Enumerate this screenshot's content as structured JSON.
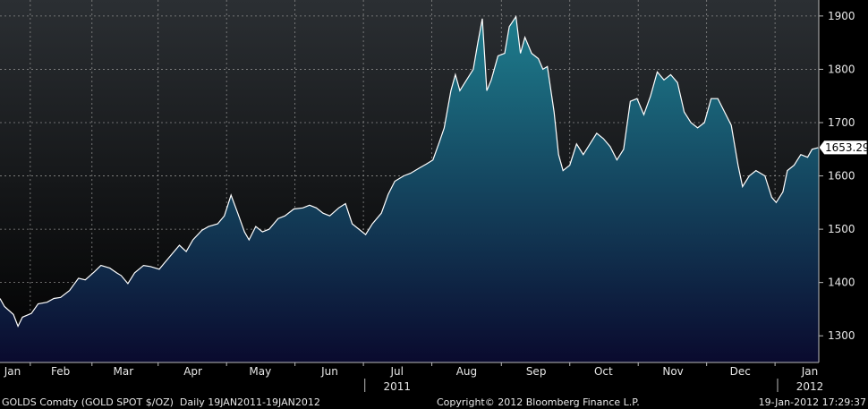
{
  "chart_data": {
    "type": "area",
    "title": "",
    "xlabel": "",
    "ylabel": "",
    "ylim": [
      1250,
      1930
    ],
    "x_range": [
      "2011-01-19",
      "2012-01-19"
    ],
    "y_ticks": [
      1300,
      1400,
      1500,
      1600,
      1700,
      1800,
      1900
    ],
    "x_ticks": [
      {
        "label": "Jan",
        "date": "2011-01-19"
      },
      {
        "label": "Feb",
        "date": "2011-02-15"
      },
      {
        "label": "Mar",
        "date": "2011-03-15"
      },
      {
        "label": "Apr",
        "date": "2011-04-15"
      },
      {
        "label": "May",
        "date": "2011-05-15"
      },
      {
        "label": "Jun",
        "date": "2011-06-15"
      },
      {
        "label": "Jul",
        "date": "2011-07-15"
      },
      {
        "label": "Aug",
        "date": "2011-08-15"
      },
      {
        "label": "Sep",
        "date": "2011-09-15"
      },
      {
        "label": "Oct",
        "date": "2011-10-15"
      },
      {
        "label": "Nov",
        "date": "2011-11-15"
      },
      {
        "label": "Dec",
        "date": "2011-12-15"
      },
      {
        "label": "Jan",
        "date": "2012-01-15"
      }
    ],
    "year_labels": [
      {
        "label": "2011",
        "date": "2011-07-15"
      },
      {
        "label": "2012",
        "date": "2012-01-15"
      }
    ],
    "last_price_label": "1653.29",
    "grid": true,
    "series": [
      {
        "points": [
          [
            "2011-01-19",
            1370
          ],
          [
            "2011-01-21",
            1355
          ],
          [
            "2011-01-25",
            1340
          ],
          [
            "2011-01-27",
            1318
          ],
          [
            "2011-01-29",
            1335
          ],
          [
            "2011-02-02",
            1342
          ],
          [
            "2011-02-05",
            1360
          ],
          [
            "2011-02-09",
            1363
          ],
          [
            "2011-02-12",
            1370
          ],
          [
            "2011-02-15",
            1372
          ],
          [
            "2011-02-19",
            1385
          ],
          [
            "2011-02-23",
            1408
          ],
          [
            "2011-02-26",
            1405
          ],
          [
            "2011-03-02",
            1420
          ],
          [
            "2011-03-05",
            1432
          ],
          [
            "2011-03-09",
            1427
          ],
          [
            "2011-03-12",
            1418
          ],
          [
            "2011-03-14",
            1413
          ],
          [
            "2011-03-17",
            1398
          ],
          [
            "2011-03-20",
            1418
          ],
          [
            "2011-03-24",
            1432
          ],
          [
            "2011-03-27",
            1430
          ],
          [
            "2011-03-31",
            1425
          ],
          [
            "2011-04-02",
            1435
          ],
          [
            "2011-04-06",
            1455
          ],
          [
            "2011-04-09",
            1470
          ],
          [
            "2011-04-12",
            1458
          ],
          [
            "2011-04-15",
            1480
          ],
          [
            "2011-04-19",
            1498
          ],
          [
            "2011-04-22",
            1505
          ],
          [
            "2011-04-26",
            1510
          ],
          [
            "2011-04-29",
            1525
          ],
          [
            "2011-05-02",
            1564
          ],
          [
            "2011-05-05",
            1530
          ],
          [
            "2011-05-08",
            1495
          ],
          [
            "2011-05-10",
            1480
          ],
          [
            "2011-05-13",
            1505
          ],
          [
            "2011-05-16",
            1495
          ],
          [
            "2011-05-19",
            1500
          ],
          [
            "2011-05-23",
            1520
          ],
          [
            "2011-05-26",
            1525
          ],
          [
            "2011-05-30",
            1538
          ],
          [
            "2011-06-03",
            1540
          ],
          [
            "2011-06-06",
            1545
          ],
          [
            "2011-06-09",
            1540
          ],
          [
            "2011-06-12",
            1530
          ],
          [
            "2011-06-15",
            1525
          ],
          [
            "2011-06-19",
            1540
          ],
          [
            "2011-06-22",
            1548
          ],
          [
            "2011-06-25",
            1510
          ],
          [
            "2011-06-28",
            1500
          ],
          [
            "2011-07-01",
            1490
          ],
          [
            "2011-07-04",
            1510
          ],
          [
            "2011-07-08",
            1530
          ],
          [
            "2011-07-11",
            1565
          ],
          [
            "2011-07-14",
            1590
          ],
          [
            "2011-07-18",
            1600
          ],
          [
            "2011-07-21",
            1605
          ],
          [
            "2011-07-25",
            1615
          ],
          [
            "2011-07-28",
            1622
          ],
          [
            "2011-07-31",
            1630
          ],
          [
            "2011-08-03",
            1665
          ],
          [
            "2011-08-05",
            1690
          ],
          [
            "2011-08-08",
            1760
          ],
          [
            "2011-08-10",
            1790
          ],
          [
            "2011-08-12",
            1760
          ],
          [
            "2011-08-15",
            1780
          ],
          [
            "2011-08-18",
            1800
          ],
          [
            "2011-08-20",
            1850
          ],
          [
            "2011-08-22",
            1895
          ],
          [
            "2011-08-24",
            1760
          ],
          [
            "2011-08-26",
            1780
          ],
          [
            "2011-08-29",
            1825
          ],
          [
            "2011-09-01",
            1830
          ],
          [
            "2011-09-03",
            1880
          ],
          [
            "2011-09-06",
            1899
          ],
          [
            "2011-09-08",
            1830
          ],
          [
            "2011-09-10",
            1860
          ],
          [
            "2011-09-13",
            1830
          ],
          [
            "2011-09-16",
            1820
          ],
          [
            "2011-09-18",
            1800
          ],
          [
            "2011-09-20",
            1805
          ],
          [
            "2011-09-23",
            1720
          ],
          [
            "2011-09-25",
            1640
          ],
          [
            "2011-09-27",
            1610
          ],
          [
            "2011-09-30",
            1620
          ],
          [
            "2011-10-03",
            1660
          ],
          [
            "2011-10-06",
            1640
          ],
          [
            "2011-10-09",
            1660
          ],
          [
            "2011-10-12",
            1680
          ],
          [
            "2011-10-15",
            1670
          ],
          [
            "2011-10-18",
            1655
          ],
          [
            "2011-10-21",
            1630
          ],
          [
            "2011-10-24",
            1650
          ],
          [
            "2011-10-27",
            1740
          ],
          [
            "2011-10-30",
            1745
          ],
          [
            "2011-11-02",
            1715
          ],
          [
            "2011-11-05",
            1750
          ],
          [
            "2011-11-08",
            1795
          ],
          [
            "2011-11-11",
            1780
          ],
          [
            "2011-11-14",
            1790
          ],
          [
            "2011-11-17",
            1775
          ],
          [
            "2011-11-20",
            1720
          ],
          [
            "2011-11-23",
            1700
          ],
          [
            "2011-11-26",
            1690
          ],
          [
            "2011-11-29",
            1700
          ],
          [
            "2011-12-02",
            1745
          ],
          [
            "2011-12-05",
            1745
          ],
          [
            "2011-12-08",
            1720
          ],
          [
            "2011-12-11",
            1695
          ],
          [
            "2011-12-14",
            1620
          ],
          [
            "2011-12-16",
            1580
          ],
          [
            "2011-12-19",
            1600
          ],
          [
            "2011-12-22",
            1610
          ],
          [
            "2011-12-26",
            1600
          ],
          [
            "2011-12-29",
            1560
          ],
          [
            "2011-12-31",
            1550
          ],
          [
            "2012-01-03",
            1570
          ],
          [
            "2012-01-05",
            1610
          ],
          [
            "2012-01-08",
            1620
          ],
          [
            "2012-01-11",
            1640
          ],
          [
            "2012-01-14",
            1635
          ],
          [
            "2012-01-16",
            1650
          ],
          [
            "2012-01-19",
            1653.29
          ]
        ]
      }
    ]
  },
  "footer": {
    "security": "GOLDS Comdty (GOLD SPOT $/OZ)  Daily 19JAN2011-19JAN2012",
    "copyright": "Copyright© 2012 Bloomberg Finance L.P.",
    "timestamp": "19-Jan-2012 17:29:37"
  },
  "colors": {
    "background_top": "#2b2f33",
    "background_bottom": "#000000",
    "area_top": "#1e7e8e",
    "area_bottom": "#0a0a2e",
    "line": "#ffffff",
    "grid": "#8a8a8a",
    "text": "#e6e6e6"
  }
}
